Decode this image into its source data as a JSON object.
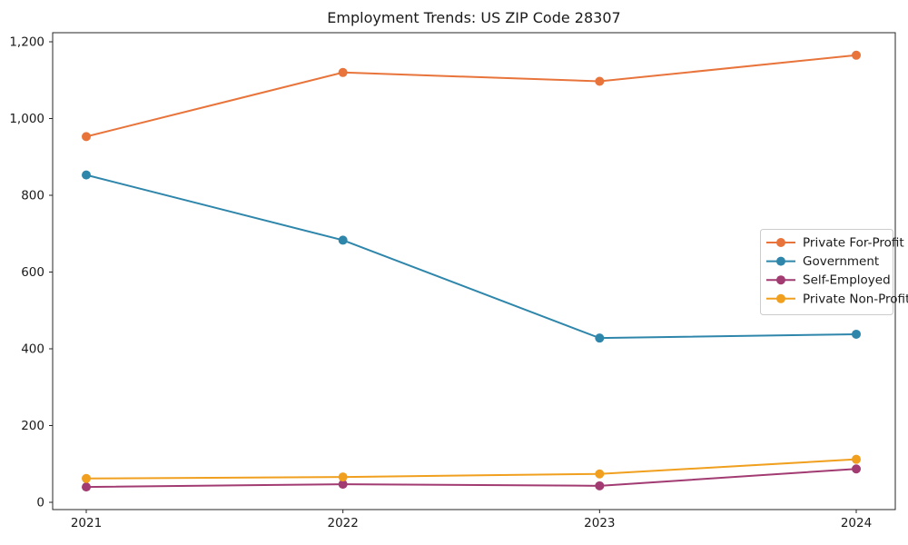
{
  "chart_data": {
    "type": "line",
    "title": "Employment Trends: US ZIP Code 28307",
    "xlabel": "",
    "ylabel": "",
    "x": [
      2021,
      2022,
      2023,
      2024
    ],
    "xtick_labels": [
      "2021",
      "2022",
      "2023",
      "2024"
    ],
    "yticks": [
      0,
      200,
      400,
      600,
      800,
      1000,
      1200
    ],
    "ytick_labels": [
      "0",
      "200",
      "400",
      "600",
      "800",
      "1,000",
      "1,200"
    ],
    "ylim": [
      -19,
      1224
    ],
    "grid": false,
    "legend_position": "center right",
    "marker": "circle",
    "series": [
      {
        "name": "Private For-Profit",
        "color": "#E8743B",
        "values": [
          953,
          1120,
          1097,
          1165
        ]
      },
      {
        "name": "Government",
        "color": "#2E86AB",
        "values": [
          853,
          683,
          428,
          438
        ]
      },
      {
        "name": "Self-Employed",
        "color": "#A23B72",
        "values": [
          40,
          47,
          43,
          87
        ]
      },
      {
        "name": "Private Non-Profit",
        "color": "#F0A01E",
        "values": [
          62,
          66,
          74,
          112
        ]
      }
    ]
  }
}
